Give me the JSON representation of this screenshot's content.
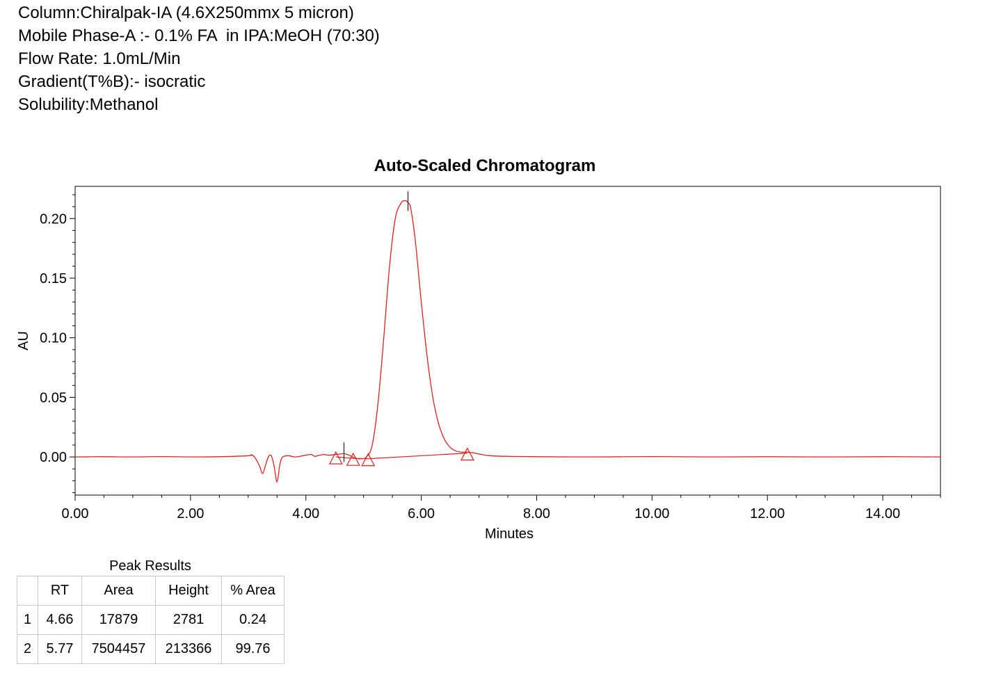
{
  "header": {
    "lines": [
      "Column:Chiralpak-IA (4.6X250mmx 5 micron)",
      "Mobile Phase-A :- 0.1% FA  in IPA:MeOH (70:30)",
      "Flow Rate: 1.0mL/Min",
      "Gradient(T%B):- isocratic",
      "Solubility:Methanol"
    ]
  },
  "chart_data": {
    "type": "line",
    "title": "Auto-Scaled Chromatogram",
    "xlabel": "Minutes",
    "ylabel": "AU",
    "xlim": [
      0,
      15
    ],
    "ylim": [
      -0.032,
      0.227
    ],
    "x_ticks": [
      "0.00",
      "2.00",
      "4.00",
      "6.00",
      "8.00",
      "10.00",
      "12.00",
      "14.00"
    ],
    "y_ticks": [
      "0.00",
      "0.05",
      "0.10",
      "0.15",
      "0.20"
    ],
    "grid": false,
    "line_color": "#e0201b",
    "series": [
      {
        "x": [
          0,
          0.5,
          1.0,
          1.5,
          2.0,
          2.5,
          3.0,
          3.05,
          3.1,
          3.15,
          3.2,
          3.25,
          3.3,
          3.35,
          3.4,
          3.45,
          3.5,
          3.55,
          3.6,
          3.7,
          3.8,
          3.9,
          4.0,
          4.1,
          4.15,
          4.2,
          4.3,
          4.4,
          4.5,
          4.6,
          4.66,
          4.75,
          4.85,
          4.95,
          5.05,
          5.15,
          5.25,
          5.35,
          5.45,
          5.55,
          5.65,
          5.72,
          5.77,
          5.82,
          5.9,
          6.0,
          6.1,
          6.2,
          6.3,
          6.4,
          6.5,
          6.6,
          6.7,
          6.8,
          6.9,
          7.0,
          7.2,
          7.5,
          8.0,
          9.0,
          10.0,
          11.0,
          12.0,
          13.0,
          14.0,
          15.0
        ],
        "y": [
          0.0,
          0.0002,
          0.0,
          0.0003,
          0.0,
          0.0002,
          0.001,
          0.0018,
          0.0005,
          -0.003,
          -0.008,
          -0.014,
          -0.007,
          0.0,
          0.001,
          -0.008,
          -0.021,
          -0.006,
          0.0,
          0.001,
          0.0,
          0.0005,
          0.0015,
          0.002,
          0.0005,
          0.001,
          0.002,
          0.0015,
          0.002,
          0.0025,
          0.0028,
          0.0015,
          -0.001,
          -0.0015,
          0.0,
          0.01,
          0.045,
          0.1,
          0.16,
          0.2,
          0.213,
          0.215,
          0.2134,
          0.208,
          0.18,
          0.13,
          0.085,
          0.05,
          0.028,
          0.015,
          0.008,
          0.005,
          0.004,
          0.004,
          0.0035,
          0.0025,
          0.001,
          0.0005,
          0.0002,
          0.0,
          0.0003,
          0.0,
          0.0002,
          0.0,
          0.0002,
          0.0
        ]
      }
    ],
    "baseline": {
      "x": [
        4.52,
        4.82,
        5.08,
        6.8
      ],
      "y": [
        0.0,
        -0.0012,
        -0.0015,
        0.0032
      ]
    },
    "peak_markers": [
      {
        "x": 4.66,
        "y": 0.0028
      },
      {
        "x": 5.77,
        "y": 0.2134
      }
    ]
  },
  "results": {
    "title": "Peak Results",
    "columns": [
      "",
      "RT",
      "Area",
      "Height",
      "% Area"
    ],
    "rows": [
      [
        "1",
        "4.66",
        "17879",
        "2781",
        "0.24"
      ],
      [
        "2",
        "5.77",
        "7504457",
        "213366",
        "99.76"
      ]
    ]
  }
}
